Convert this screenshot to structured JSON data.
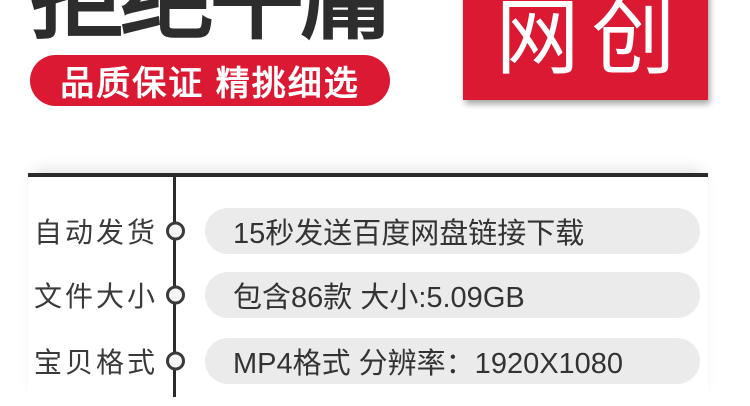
{
  "header": {
    "title": "拒绝平庸",
    "quality_badge": "品质保证 精挑细选",
    "brand_badge": "网创"
  },
  "colors": {
    "accent_red": "#dc1932",
    "rule_dark": "#2b2b2b",
    "pill_bg": "#ebebeb",
    "text_dark": "#333333"
  },
  "spec_table": {
    "rows": [
      {
        "label": "自动发货",
        "value": "15秒发送百度网盘链接下载"
      },
      {
        "label": "文件大小",
        "value": "包含86款 大小:5.09GB"
      },
      {
        "label": "宝贝格式",
        "value": "MP4格式 分辨率：1920X1080"
      }
    ]
  }
}
